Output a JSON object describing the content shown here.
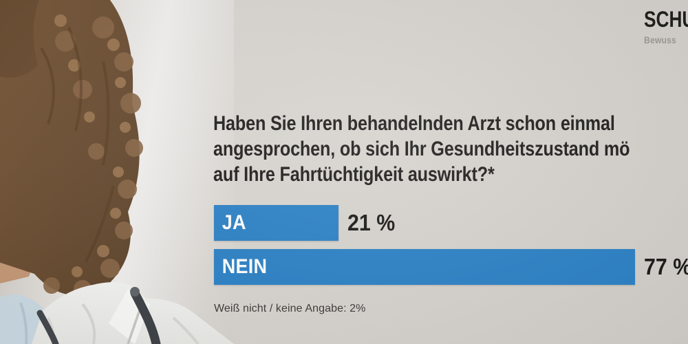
{
  "logo": {
    "brand_visible": "SCHU",
    "tagline_visible": "Bewuss"
  },
  "question": {
    "lines": [
      "Haben Sie Ihren behandelnden Arzt schon einmal",
      "angesprochen, ob sich Ihr Gesundheitszustand mö",
      "auf Ihre Fahrtüchtigkeit auswirkt?*"
    ]
  },
  "footnote": "Weiß nicht / keine Angabe: 2%",
  "photo": {
    "description": "woman doctor with curly hair, white coat and stethoscope, cropped at left edge"
  },
  "colors": {
    "background_gray": "#d6d3ce",
    "bar_blue": "#2a80c5",
    "question_text": "#1e1d1b",
    "bar_label_white": "#ffffff",
    "value_text": "#181816"
  },
  "chart_data": {
    "type": "bar",
    "orientation": "horizontal",
    "title": "Haben Sie Ihren behandelnden Arzt schon einmal angesprochen, ob sich Ihr Gesundheitszustand mö… auf Ihre Fahrtüchtigkeit auswirkt?*",
    "categories": [
      "JA",
      "NEIN"
    ],
    "values": [
      21,
      77
    ],
    "value_labels": [
      "21 %",
      "77 %"
    ],
    "unit": "%",
    "bar_color": "#2a80c5",
    "footnote": "Weiß nicht / keine Angabe: 2%",
    "legend": "none",
    "axes": "none (labels inside bars, values beside bars)"
  }
}
